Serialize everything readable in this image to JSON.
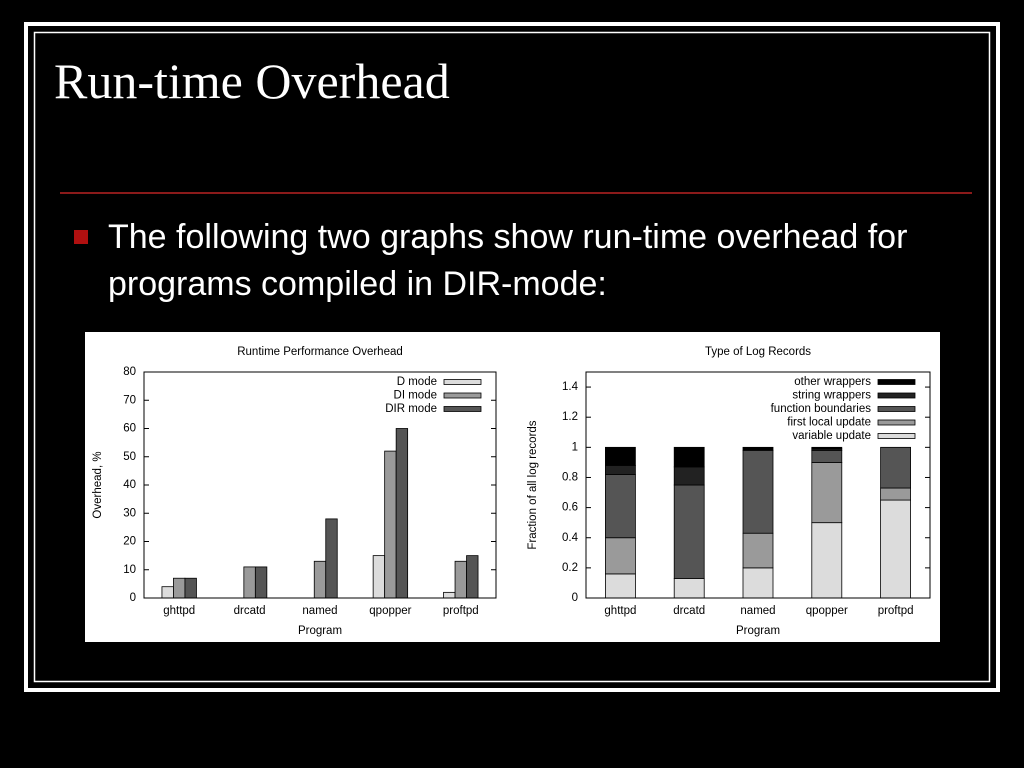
{
  "slide_title": "Run-time Overhead",
  "bullet": "The following two graphs show run-time overhead for programs compiled in DIR-mode:",
  "chart_data": [
    {
      "type": "bar",
      "title": "Runtime Performance Overhead",
      "x_label": "Program",
      "y_label": "Overhead, %",
      "categories": [
        "ghttpd",
        "drcatd",
        "named",
        "qpopper",
        "proftpd"
      ],
      "series": [
        {
          "name": "D mode",
          "color": "#dcdcdc",
          "values": [
            4,
            0,
            0,
            15,
            2
          ]
        },
        {
          "name": "DI mode",
          "color": "#9a9a9a",
          "values": [
            7,
            11,
            13,
            52,
            13
          ]
        },
        {
          "name": "DIR mode",
          "color": "#555555",
          "values": [
            7,
            11,
            28,
            60,
            15
          ]
        }
      ],
      "ylim": [
        0,
        80
      ],
      "yticks": [
        0,
        10,
        20,
        30,
        40,
        50,
        60,
        70,
        80
      ],
      "grid": false,
      "legend": "upper right"
    },
    {
      "type": "stacked_bar",
      "title": "Type of Log Records",
      "x_label": "Program",
      "y_label": "Fraction of all log records",
      "categories": [
        "ghttpd",
        "drcatd",
        "named",
        "qpopper",
        "proftpd"
      ],
      "series": [
        {
          "name": "variable update",
          "color": "#dcdcdc",
          "values": [
            0.16,
            0.13,
            0.2,
            0.5,
            0.65
          ]
        },
        {
          "name": "first local update",
          "color": "#9a9a9a",
          "values": [
            0.24,
            0,
            0.23,
            0.4,
            0.08
          ]
        },
        {
          "name": "function boundaries",
          "color": "#555555",
          "values": [
            0.42,
            0.62,
            0.55,
            0.08,
            0.27
          ]
        },
        {
          "name": "string wrappers",
          "color": "#222222",
          "values": [
            0.06,
            0.12,
            0,
            0.01,
            0
          ]
        },
        {
          "name": "other wrappers",
          "color": "#000000",
          "values": [
            0.12,
            0.13,
            0.02,
            0.01,
            0
          ]
        }
      ],
      "ylim": [
        0,
        1.5
      ],
      "yticks": [
        0,
        0.2,
        0.4,
        0.6,
        0.8,
        1,
        1.2,
        1.4
      ],
      "grid": false,
      "legend": "upper right"
    }
  ]
}
